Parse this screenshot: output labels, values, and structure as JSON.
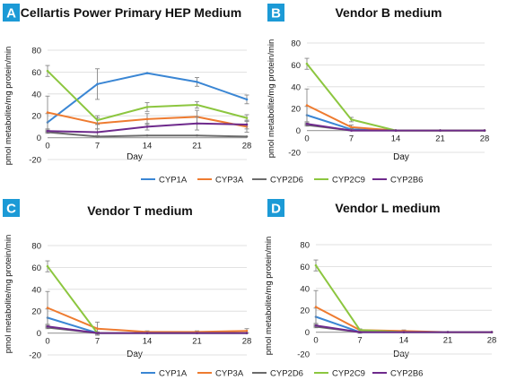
{
  "colors": {
    "CYP1A": "#3a86d4",
    "CYP3A": "#ee7b30",
    "CYP2D6": "#6b6b6b",
    "CYP2C9": "#8cc63f",
    "CYP2B6": "#6e2a8c",
    "badge": "#1c9ad6",
    "gridline": "#d9d9d9",
    "axis": "#a6a6a6"
  },
  "legends": [
    {
      "entries": [
        "CYP1A",
        "CYP3A",
        "CYP2D6",
        "CYP2C9",
        "CYP2B6"
      ]
    },
    {
      "entries": [
        "CYP1A",
        "CYP3A",
        "CYP2D6",
        "CYP2C9",
        "CYP2B6"
      ]
    }
  ],
  "chart_data": [
    {
      "type": "line",
      "panel_label": "A",
      "title": "Cellartis Power Primary HEP Medium",
      "xlabel": "Day",
      "ylabel": "pmol metabolite/mg protein/min",
      "x": [
        0,
        7,
        14,
        21,
        28
      ],
      "x_ticks": [
        "0",
        "7",
        "14",
        "21",
        "28"
      ],
      "y_ticks": [
        "-20",
        "0",
        "20",
        "40",
        "60",
        "80"
      ],
      "ylim": [
        -20,
        80
      ],
      "grid": "horizontal",
      "series": [
        {
          "name": "CYP1A",
          "values": [
            14,
            49,
            59,
            51,
            35
          ],
          "errors": [
            8,
            14,
            0,
            4,
            4
          ]
        },
        {
          "name": "CYP3A",
          "values": [
            23,
            13,
            17,
            19,
            10
          ],
          "errors": [
            15,
            5,
            5,
            6,
            5
          ]
        },
        {
          "name": "CYP2D6",
          "values": [
            5,
            1,
            2,
            2,
            1
          ],
          "errors": [
            1,
            0,
            0,
            0,
            0
          ]
        },
        {
          "name": "CYP2C9",
          "values": [
            61,
            16,
            28,
            30,
            18
          ],
          "errors": [
            5,
            4,
            4,
            3,
            3
          ]
        },
        {
          "name": "CYP2B6",
          "values": [
            6,
            5,
            10,
            13,
            12
          ],
          "errors": [
            1,
            3,
            3,
            6,
            4
          ]
        }
      ]
    },
    {
      "type": "line",
      "panel_label": "B",
      "title": "Vendor B medium",
      "xlabel": "Day",
      "ylabel": "pmol metabolite/mg protein/min",
      "x": [
        0,
        7,
        14,
        21,
        28
      ],
      "x_ticks": [
        "0",
        "7",
        "14",
        "21",
        "28"
      ],
      "y_ticks": [
        "-20",
        "0",
        "20",
        "40",
        "60",
        "80"
      ],
      "ylim": [
        -20,
        80
      ],
      "grid": "horizontal",
      "series": [
        {
          "name": "CYP1A",
          "values": [
            14,
            1,
            0,
            0,
            0
          ],
          "errors": [
            8,
            1,
            0,
            0,
            0
          ]
        },
        {
          "name": "CYP3A",
          "values": [
            23,
            3,
            0,
            0,
            0
          ],
          "errors": [
            15,
            2,
            0,
            0,
            0
          ]
        },
        {
          "name": "CYP2D6",
          "values": [
            5,
            0,
            0,
            0,
            0
          ],
          "errors": [
            1,
            0,
            0,
            0,
            0
          ]
        },
        {
          "name": "CYP2C9",
          "values": [
            61,
            10,
            0,
            0,
            0
          ],
          "errors": [
            5,
            2,
            0,
            0,
            0
          ]
        },
        {
          "name": "CYP2B6",
          "values": [
            6,
            0,
            0,
            0,
            0
          ],
          "errors": [
            1,
            0,
            0,
            0,
            0
          ]
        }
      ]
    },
    {
      "type": "line",
      "panel_label": "C",
      "title": "Vendor T medium",
      "xlabel": "Day",
      "ylabel": "pmol metabolite/mg protein/min",
      "x": [
        0,
        7,
        14,
        21,
        28
      ],
      "x_ticks": [
        "0",
        "7",
        "14",
        "21",
        "28"
      ],
      "y_ticks": [
        "-20",
        "0",
        "20",
        "40",
        "60",
        "80"
      ],
      "ylim": [
        -20,
        80
      ],
      "grid": "horizontal",
      "series": [
        {
          "name": "CYP1A",
          "values": [
            14,
            0,
            0,
            0,
            0
          ],
          "errors": [
            8,
            1,
            0,
            0,
            0
          ]
        },
        {
          "name": "CYP3A",
          "values": [
            23,
            4,
            1,
            1,
            2
          ],
          "errors": [
            15,
            6,
            1,
            1,
            2
          ]
        },
        {
          "name": "CYP2D6",
          "values": [
            5,
            0,
            0,
            0,
            0
          ],
          "errors": [
            1,
            0,
            0,
            0,
            0
          ]
        },
        {
          "name": "CYP2C9",
          "values": [
            61,
            0,
            0,
            0,
            0
          ],
          "errors": [
            5,
            1,
            0,
            0,
            0
          ]
        },
        {
          "name": "CYP2B6",
          "values": [
            6,
            0,
            0,
            0,
            0
          ],
          "errors": [
            1,
            0,
            0,
            0,
            0
          ]
        }
      ]
    },
    {
      "type": "line",
      "panel_label": "D",
      "title": "Vendor L medium",
      "xlabel": "Day",
      "ylabel": "pmol metabolite/mg protein/min",
      "x": [
        0,
        7,
        14,
        21,
        28
      ],
      "x_ticks": [
        "0",
        "7",
        "14",
        "21",
        "28"
      ],
      "y_ticks": [
        "-20",
        "0",
        "20",
        "40",
        "60",
        "80"
      ],
      "ylim": [
        -20,
        80
      ],
      "grid": "horizontal",
      "series": [
        {
          "name": "CYP1A",
          "values": [
            14,
            0,
            0,
            0,
            0
          ],
          "errors": [
            8,
            1,
            0,
            0,
            0
          ]
        },
        {
          "name": "CYP3A",
          "values": [
            23,
            2,
            1,
            0,
            0
          ],
          "errors": [
            15,
            1,
            1,
            0,
            0
          ]
        },
        {
          "name": "CYP2D6",
          "values": [
            5,
            0,
            0,
            0,
            0
          ],
          "errors": [
            1,
            0,
            0,
            0,
            0
          ]
        },
        {
          "name": "CYP2C9",
          "values": [
            61,
            2,
            0,
            0,
            0
          ],
          "errors": [
            5,
            1,
            0,
            0,
            0
          ]
        },
        {
          "name": "CYP2B6",
          "values": [
            6,
            0,
            0,
            0,
            0
          ],
          "errors": [
            1,
            0,
            0,
            0,
            0
          ]
        }
      ]
    }
  ]
}
